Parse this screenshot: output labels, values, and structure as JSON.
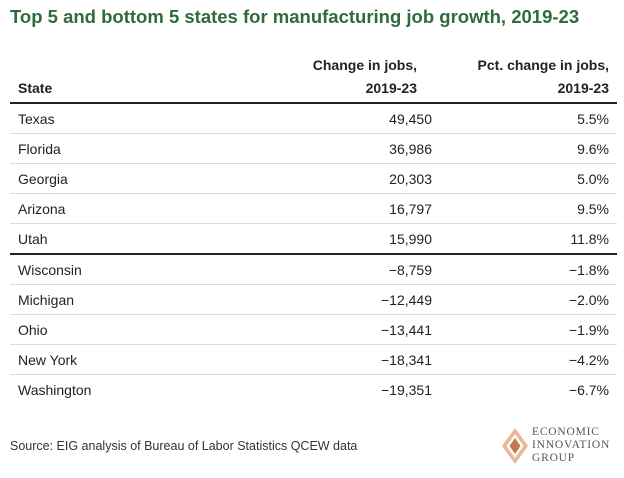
{
  "title": "Top 5 and bottom 5 states for manufacturing job growth, 2019-23",
  "headers": {
    "state": "State",
    "change_line1": "Change in jobs,",
    "change_line2": "2019-23",
    "pct_line1": "Pct. change in jobs,",
    "pct_line2": "2019-23"
  },
  "chart_data": {
    "type": "table",
    "title": "Top 5 and bottom 5 states for manufacturing job growth, 2019-23",
    "columns": [
      "State",
      "Change in jobs, 2019-23",
      "Pct. change in jobs, 2019-23"
    ],
    "rows": [
      {
        "state": "Texas",
        "change": "49,450",
        "pct": "5.5%"
      },
      {
        "state": "Florida",
        "change": "36,986",
        "pct": "9.6%"
      },
      {
        "state": "Georgia",
        "change": "20,303",
        "pct": "5.0%"
      },
      {
        "state": "Arizona",
        "change": "16,797",
        "pct": "9.5%"
      },
      {
        "state": "Utah",
        "change": "15,990",
        "pct": "11.8%"
      },
      {
        "state": "Wisconsin",
        "change": "−8,759",
        "pct": "−1.8%"
      },
      {
        "state": "Michigan",
        "change": "−12,449",
        "pct": "−2.0%"
      },
      {
        "state": "Ohio",
        "change": "−13,441",
        "pct": "−1.9%"
      },
      {
        "state": "New York",
        "change": "−18,341",
        "pct": "−4.2%"
      },
      {
        "state": "Washington",
        "change": "−19,351",
        "pct": "−6.7%"
      }
    ]
  },
  "source": "Source: EIG analysis of Bureau of Labor Statistics QCEW data",
  "logo": {
    "line1": "ECONOMIC",
    "line2": "INNOVATION",
    "line3": "GROUP",
    "colors": {
      "light": "#e8b897",
      "dark": "#c47a4e"
    }
  },
  "colors": {
    "title": "#2e6b3f"
  }
}
